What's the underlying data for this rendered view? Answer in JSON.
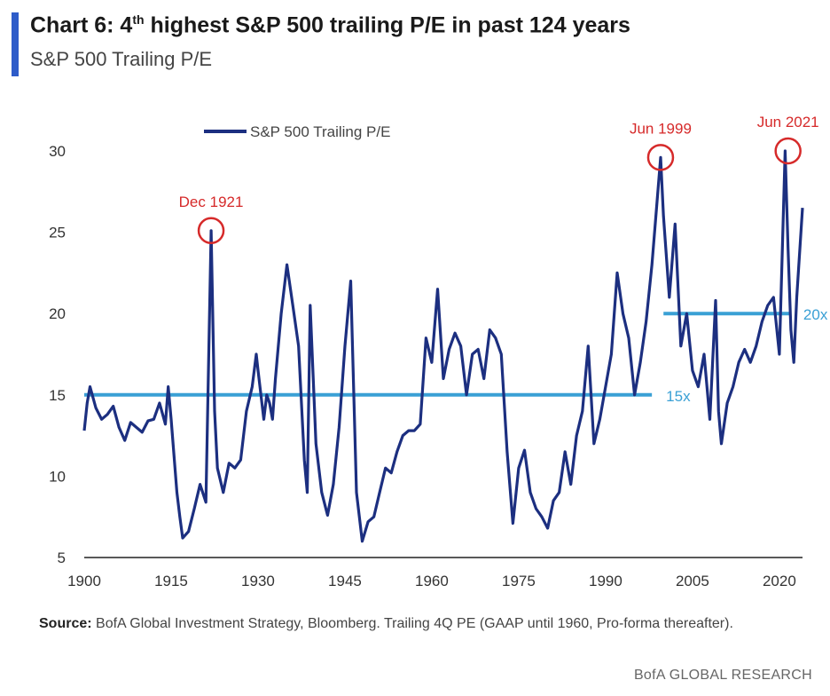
{
  "header": {
    "title_prefix": "Chart 6: 4",
    "title_sup": "th",
    "title_suffix": " highest S&P 500 trailing P/E in past 124 years",
    "subtitle": "S&P 500 Trailing P/E"
  },
  "colors": {
    "accent": "#2e5cc9",
    "series": "#1c2f80",
    "reference": "#3aa0d5",
    "annotation": "#d62a2a"
  },
  "chart_data": {
    "type": "line",
    "title": "S&P 500 Trailing P/E",
    "xlabel": "",
    "ylabel": "",
    "xlim": [
      1900,
      2024
    ],
    "ylim": [
      5,
      30
    ],
    "x_ticks": [
      1900,
      1915,
      1930,
      1945,
      1960,
      1975,
      1990,
      2005,
      2020
    ],
    "y_ticks": [
      5,
      10,
      15,
      20,
      25,
      30
    ],
    "grid": false,
    "legend": "top-left",
    "series": [
      {
        "name": "S&P 500 Trailing P/E",
        "x": [
          1900,
          1900.5,
          1901,
          1902,
          1903,
          1904,
          1905,
          1906,
          1907,
          1908,
          1909,
          1910,
          1911,
          1912,
          1913,
          1914,
          1914.5,
          1915,
          1916,
          1916.5,
          1917,
          1918,
          1919,
          1920,
          1921,
          1921.9,
          1922.5,
          1923,
          1924,
          1925,
          1926,
          1927,
          1928,
          1929,
          1929.7,
          1930,
          1931,
          1931.5,
          1932,
          1932.5,
          1933,
          1934,
          1935,
          1936,
          1937,
          1938,
          1938.5,
          1939,
          1940,
          1941,
          1942,
          1943,
          1944,
          1945,
          1946,
          1947,
          1948,
          1949,
          1950,
          1951,
          1952,
          1953,
          1954,
          1955,
          1956,
          1957,
          1958,
          1959,
          1960,
          1961,
          1962,
          1963,
          1964,
          1965,
          1966,
          1967,
          1968,
          1969,
          1970,
          1971,
          1972,
          1973,
          1974,
          1975,
          1976,
          1977,
          1978,
          1979,
          1980,
          1981,
          1982,
          1983,
          1984,
          1985,
          1986,
          1987,
          1988,
          1989,
          1990,
          1991,
          1992,
          1993,
          1994,
          1995,
          1996,
          1997,
          1998,
          1999.5,
          2000,
          2001,
          2002,
          2003,
          2004,
          2005,
          2006,
          2007,
          2008,
          2009,
          2009.5,
          2010,
          2011,
          2012,
          2013,
          2014,
          2015,
          2016,
          2017,
          2018,
          2019,
          2020,
          2021,
          2021.5,
          2022,
          2022.5,
          2023,
          2024
        ],
        "values": [
          12.8,
          14.5,
          15.5,
          14.2,
          13.5,
          13.8,
          14.3,
          13.0,
          12.2,
          13.3,
          13.0,
          12.7,
          13.4,
          13.5,
          14.5,
          13.2,
          15.5,
          13.5,
          9.0,
          7.5,
          6.2,
          6.6,
          8.0,
          9.5,
          8.4,
          25.1,
          14.0,
          10.5,
          9.0,
          10.8,
          10.5,
          11.0,
          14.0,
          15.5,
          17.5,
          16.5,
          13.5,
          15.0,
          14.5,
          13.5,
          16.0,
          20.0,
          23.0,
          20.5,
          18.0,
          11.0,
          9.0,
          20.5,
          12.0,
          9.0,
          7.6,
          9.5,
          13.0,
          18.0,
          22.0,
          9.0,
          6.0,
          7.2,
          7.5,
          9.0,
          10.5,
          10.2,
          11.5,
          12.5,
          12.8,
          12.8,
          13.2,
          18.5,
          17.0,
          21.5,
          16.0,
          17.8,
          18.8,
          18.0,
          15.0,
          17.5,
          17.8,
          16.0,
          19.0,
          18.5,
          17.5,
          11.5,
          7.1,
          10.5,
          11.6,
          9.0,
          8.0,
          7.5,
          6.8,
          8.5,
          9.0,
          11.5,
          9.5,
          12.5,
          14.0,
          18.0,
          12.0,
          13.5,
          15.5,
          17.5,
          22.5,
          20.0,
          18.5,
          15.0,
          17.0,
          19.5,
          23.0,
          29.6,
          26.0,
          21.0,
          25.5,
          18.0,
          20.0,
          16.5,
          15.5,
          17.5,
          13.5,
          20.8,
          14.0,
          12.0,
          14.5,
          15.5,
          17.0,
          17.8,
          17.0,
          18.0,
          19.5,
          20.5,
          21.0,
          17.5,
          30.0,
          24.0,
          19.0,
          17.0,
          21.0,
          26.5
        ]
      }
    ],
    "reference_lines": [
      {
        "label": "15x",
        "y": 15,
        "x_from": 1900,
        "x_to": 1998
      },
      {
        "label": "20x",
        "y": 20,
        "x_from": 2000,
        "x_to": 2022
      }
    ],
    "annotations": [
      {
        "label": "Dec 1921",
        "x": 1921.9,
        "y": 25.1
      },
      {
        "label": "Jun 1999",
        "x": 1999.5,
        "y": 29.6
      },
      {
        "label": "Jun 2021",
        "x": 2021.5,
        "y": 30.0
      }
    ]
  },
  "source": {
    "label": "Source:",
    "text": " BofA Global Investment Strategy, Bloomberg. Trailing 4Q PE (GAAP until 1960, Pro-forma thereafter)."
  },
  "footer": "BofA GLOBAL RESEARCH"
}
